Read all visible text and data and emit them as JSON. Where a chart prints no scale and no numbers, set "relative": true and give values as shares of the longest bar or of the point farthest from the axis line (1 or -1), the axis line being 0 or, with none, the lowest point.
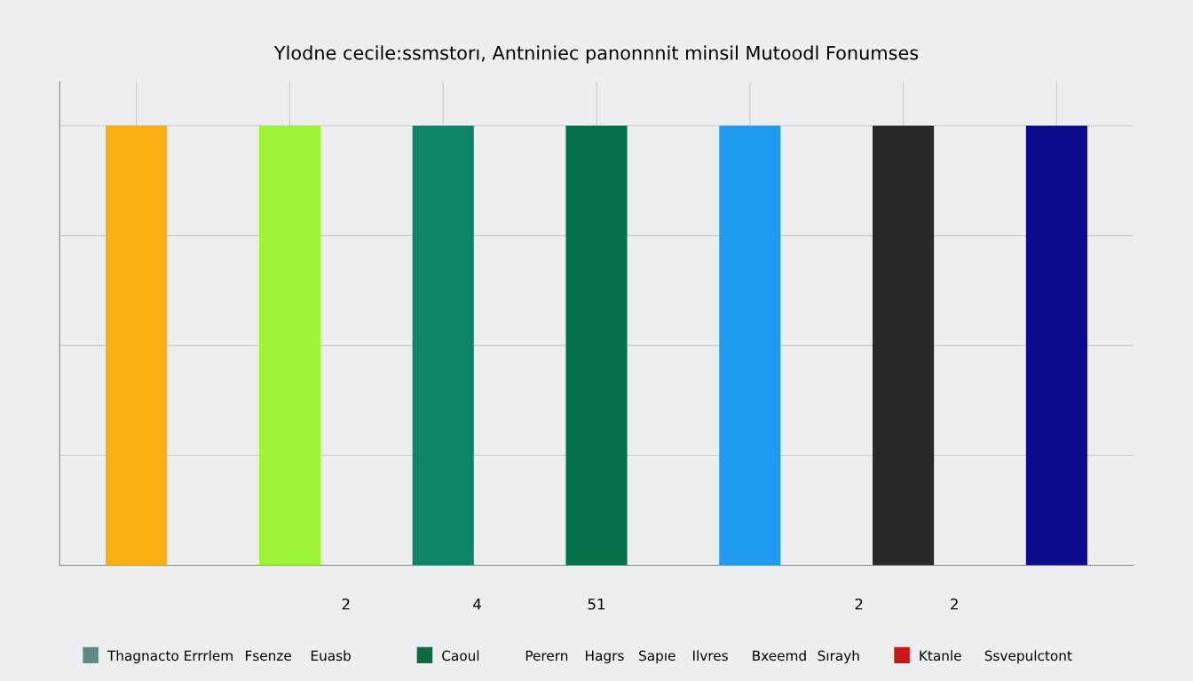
{
  "chart_data": {
    "type": "bar",
    "title": "Ylodne cecile:ssmstorı, Antniniec panonnnit minsil Mutoodl Fonumses",
    "categories": [
      null,
      null,
      null,
      null,
      null,
      null,
      null
    ],
    "values": [
      1,
      1,
      1,
      1,
      1,
      1,
      1
    ],
    "colors": [
      "#f9b010",
      "#9ef535",
      "#0d8568",
      "#05704a",
      "#1f9cf0",
      "#272829",
      "#0b0d8c"
    ],
    "relative": true,
    "grid": true,
    "annotations": [
      "2",
      "4",
      "51",
      "2",
      "2",
      "Thagnacto Errrlem",
      "Fsenze",
      "Euasb",
      "Caoul",
      "Perern",
      "Hagrs",
      "Sapıe",
      "Ilvres",
      "Bxeemd",
      "Sırayh",
      "Ktanle",
      "Ssvepulctont"
    ]
  }
}
